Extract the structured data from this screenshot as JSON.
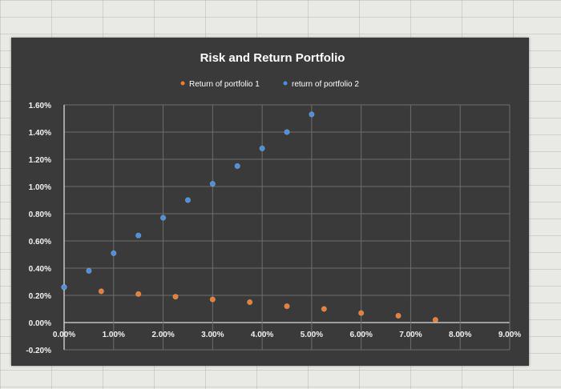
{
  "chart_data": {
    "type": "scatter",
    "title": "Risk and Return Portfolio",
    "xlabel": "",
    "ylabel": "",
    "xlim": [
      0,
      0.09
    ],
    "ylim": [
      -0.002,
      0.016
    ],
    "x_ticks": [
      "0.00%",
      "1.00%",
      "2.00%",
      "3.00%",
      "4.00%",
      "5.00%",
      "6.00%",
      "7.00%",
      "8.00%",
      "9.00%"
    ],
    "y_ticks": [
      "-0.20%",
      "0.00%",
      "0.20%",
      "0.40%",
      "0.60%",
      "0.80%",
      "1.00%",
      "1.20%",
      "1.40%",
      "1.60%"
    ],
    "grid": true,
    "legend_position": "top",
    "series": [
      {
        "name": "Return of portfolio 1",
        "color": "#ed7d31",
        "points": [
          {
            "x": 0.0,
            "y": 0.0026
          },
          {
            "x": 0.0075,
            "y": 0.0023
          },
          {
            "x": 0.015,
            "y": 0.0021
          },
          {
            "x": 0.0225,
            "y": 0.0019
          },
          {
            "x": 0.03,
            "y": 0.0017
          },
          {
            "x": 0.0375,
            "y": 0.0015
          },
          {
            "x": 0.045,
            "y": 0.0012
          },
          {
            "x": 0.0525,
            "y": 0.001
          },
          {
            "x": 0.06,
            "y": 0.0007
          },
          {
            "x": 0.0675,
            "y": 0.0005
          },
          {
            "x": 0.075,
            "y": 0.0002
          }
        ]
      },
      {
        "name": "return of portfolio 2",
        "color": "#4a90e2",
        "points": [
          {
            "x": 0.0,
            "y": 0.0026
          },
          {
            "x": 0.005,
            "y": 0.0038
          },
          {
            "x": 0.01,
            "y": 0.0051
          },
          {
            "x": 0.015,
            "y": 0.0064
          },
          {
            "x": 0.02,
            "y": 0.0077
          },
          {
            "x": 0.025,
            "y": 0.009
          },
          {
            "x": 0.03,
            "y": 0.0102
          },
          {
            "x": 0.035,
            "y": 0.0115
          },
          {
            "x": 0.04,
            "y": 0.0128
          },
          {
            "x": 0.045,
            "y": 0.014
          },
          {
            "x": 0.05,
            "y": 0.0153
          }
        ]
      }
    ]
  }
}
